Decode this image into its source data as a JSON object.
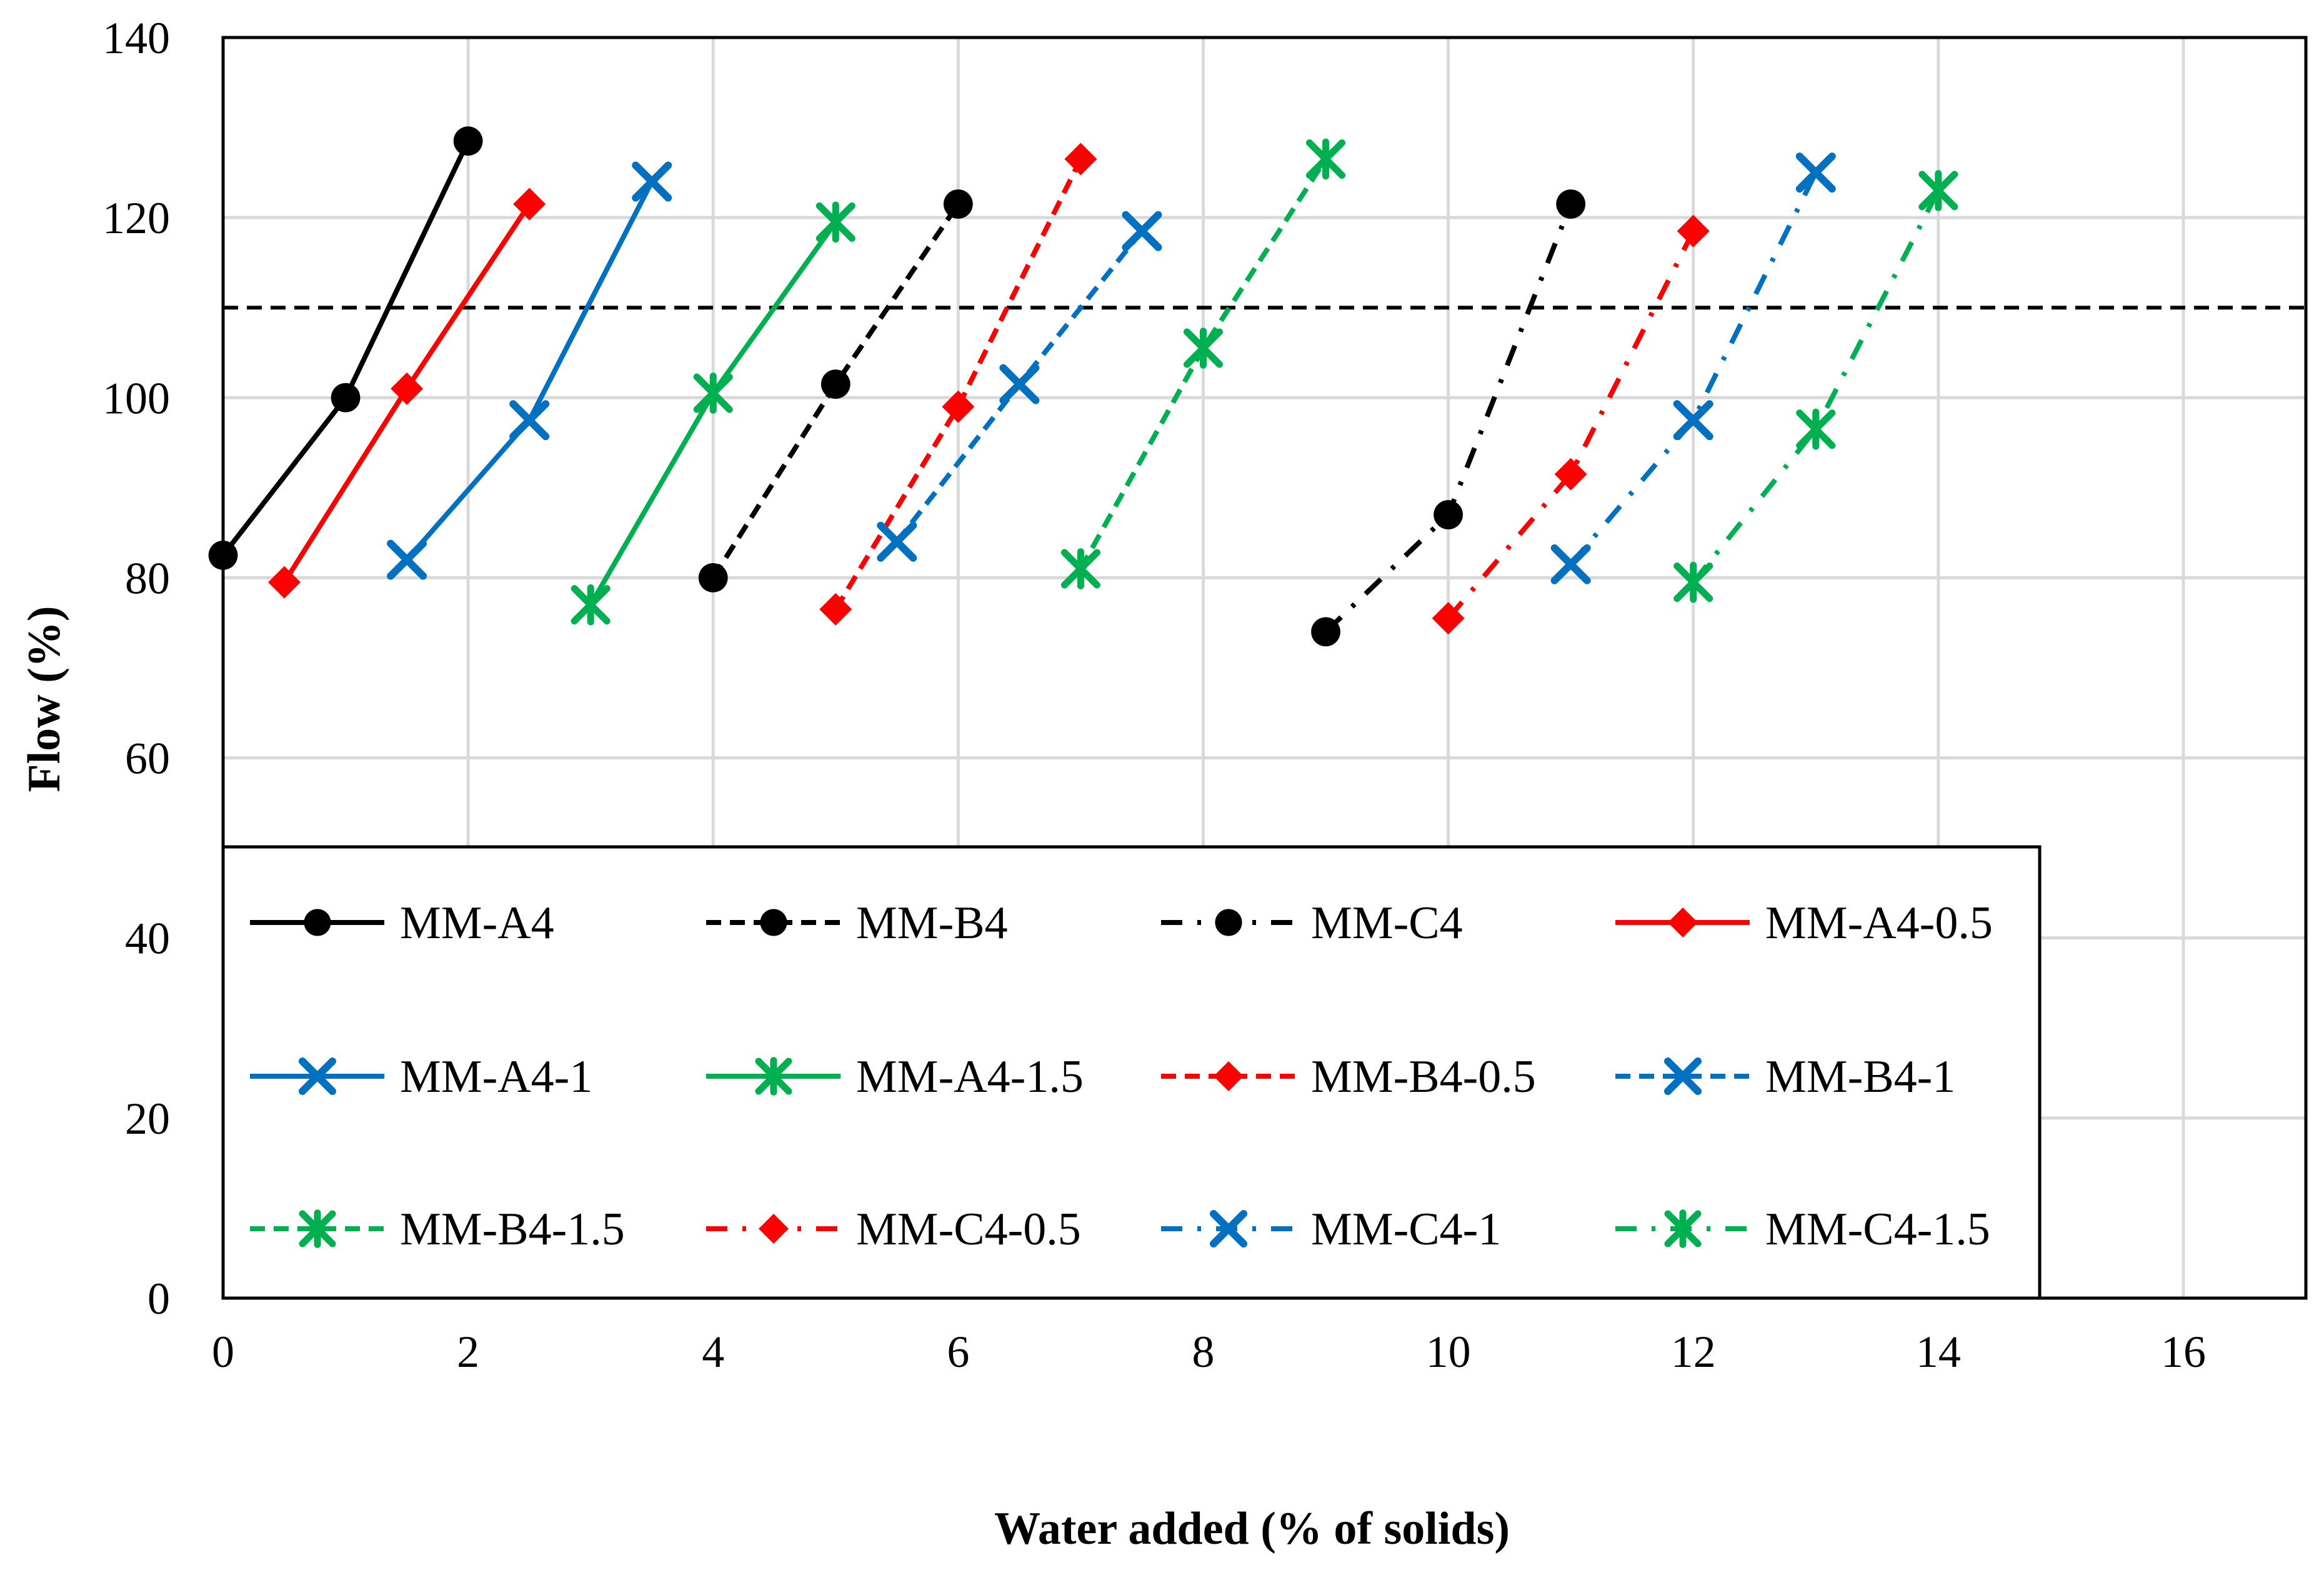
{
  "chart_data": {
    "type": "line",
    "title": "",
    "xlabel": "Water added (% of solids)",
    "ylabel": "Flow (%)",
    "xlim": [
      0,
      17
    ],
    "ylim": [
      0,
      140
    ],
    "xticks": [
      0,
      2,
      4,
      6,
      8,
      10,
      12,
      14,
      16
    ],
    "yticks": [
      0,
      20,
      40,
      60,
      80,
      100,
      120,
      140
    ],
    "grid": true,
    "reference_line": {
      "y": 110,
      "style": "dashed",
      "color": "#000000"
    },
    "legend_placement": "lower-center",
    "series": [
      {
        "name": "MM-A4",
        "color": "#000000",
        "dash": "solid",
        "marker": "circle",
        "x": [
          0,
          1,
          2
        ],
        "y": [
          82.5,
          100,
          128.5
        ]
      },
      {
        "name": "MM-B4",
        "color": "#000000",
        "dash": "dashed",
        "marker": "circle",
        "x": [
          4,
          5,
          6
        ],
        "y": [
          80,
          101.5,
          121.5
        ]
      },
      {
        "name": "MM-C4",
        "color": "#000000",
        "dash": "dashdot",
        "marker": "circle",
        "x": [
          9,
          10,
          11
        ],
        "y": [
          74,
          87,
          121.5
        ]
      },
      {
        "name": "MM-A4-0.5",
        "color": "#ff0000",
        "dash": "solid",
        "marker": "diamond",
        "x": [
          0.5,
          1.5,
          2.5
        ],
        "y": [
          79.5,
          101,
          121.5
        ]
      },
      {
        "name": "MM-A4-1",
        "color": "#0070c0",
        "dash": "solid",
        "marker": "x",
        "x": [
          1.5,
          2.5,
          3.5
        ],
        "y": [
          82,
          97.5,
          124
        ]
      },
      {
        "name": "MM-A4-1.5",
        "color": "#00b050",
        "dash": "solid",
        "marker": "star",
        "x": [
          3,
          4,
          5
        ],
        "y": [
          77,
          100.5,
          119.5
        ]
      },
      {
        "name": "MM-B4-0.5",
        "color": "#ff0000",
        "dash": "dashed",
        "marker": "diamond",
        "x": [
          5,
          6,
          7
        ],
        "y": [
          76.5,
          99,
          126.5
        ]
      },
      {
        "name": "MM-B4-1",
        "color": "#0070c0",
        "dash": "dashed",
        "marker": "x",
        "x": [
          5.5,
          6.5,
          7.5
        ],
        "y": [
          84,
          101.5,
          118.5
        ]
      },
      {
        "name": "MM-B4-1.5",
        "color": "#00b050",
        "dash": "dashed",
        "marker": "star",
        "x": [
          7,
          8,
          9
        ],
        "y": [
          81,
          105.5,
          126.5
        ]
      },
      {
        "name": "MM-C4-0.5",
        "color": "#ff0000",
        "dash": "dashdot",
        "marker": "diamond",
        "x": [
          10,
          11,
          12
        ],
        "y": [
          75.5,
          91.5,
          118.5
        ]
      },
      {
        "name": "MM-C4-1",
        "color": "#0070c0",
        "dash": "dashdot",
        "marker": "x",
        "x": [
          11,
          12,
          13
        ],
        "y": [
          81.5,
          97.5,
          125
        ]
      },
      {
        "name": "MM-C4-1.5",
        "color": "#00b050",
        "dash": "dashdot",
        "marker": "star",
        "x": [
          12,
          13,
          14
        ],
        "y": [
          79.5,
          96.5,
          123
        ]
      }
    ]
  }
}
